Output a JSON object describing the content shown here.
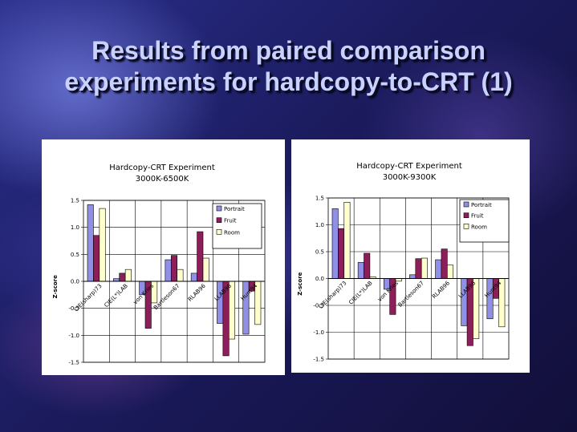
{
  "slide": {
    "title_line1": "Results from paired comparison",
    "title_line2": "experiments for hardcopy-to-CRT (1)"
  },
  "colors": {
    "portrait": "#8f8fe6",
    "fruit": "#8c1f5a",
    "room": "#ffffcc"
  },
  "chart_data": [
    {
      "type": "bar",
      "title": "Hardcopy-CRT Experiment",
      "subtitle": "3000K-6500K",
      "ylabel": "Z-score",
      "ylim": [
        -1.5,
        1.5
      ],
      "yticks": [
        1.5,
        1.0,
        0.5,
        0.0,
        -0.5,
        -1.0,
        -1.5
      ],
      "ytick_labels": [
        "1.5",
        "1.0",
        "0.5",
        "0.0",
        "-0.5",
        "-1.0",
        "-1.5"
      ],
      "grid": true,
      "legend": "top-right",
      "categories": [
        "CIE(sharp)73",
        "CIE(L*)LAB",
        "von Kries",
        "Bartleson67",
        "RLAB96",
        "LLAB96",
        "Hunt94"
      ],
      "series": [
        {
          "name": "Portrait",
          "values": [
            1.42,
            0.05,
            -0.25,
            0.4,
            0.15,
            -0.78,
            -0.98
          ]
        },
        {
          "name": "Fruit",
          "values": [
            0.85,
            0.15,
            -0.87,
            0.48,
            0.92,
            -1.38,
            -0.18
          ]
        },
        {
          "name": "Room",
          "values": [
            1.35,
            0.22,
            -0.4,
            0.22,
            0.43,
            -1.07,
            -0.8
          ]
        }
      ]
    },
    {
      "type": "bar",
      "title": "Hardcopy-CRT Experiment",
      "subtitle": "3000K-9300K",
      "ylabel": "Z-score",
      "ylim": [
        -1.5,
        1.5
      ],
      "yticks": [
        1.5,
        1.0,
        0.5,
        0.0,
        -0.5,
        -1.0,
        -1.5
      ],
      "ytick_labels": [
        "1.5",
        "1.0",
        "0.5",
        "0.0",
        "-0.5",
        "-1.0",
        "-1.5"
      ],
      "grid": true,
      "legend": "top-right",
      "categories": [
        "CIE(sharp)73",
        "CIE(L*)LAB",
        "von Kries",
        "Bartleson67",
        "RLAB96",
        "LLAB96",
        "Hunt94"
      ],
      "series": [
        {
          "name": "Portrait",
          "values": [
            1.3,
            0.3,
            -0.2,
            0.07,
            0.35,
            -0.88,
            -0.75
          ]
        },
        {
          "name": "Fruit",
          "values": [
            0.93,
            0.47,
            -0.67,
            0.37,
            0.55,
            -1.25,
            -0.37
          ]
        },
        {
          "name": "Room",
          "values": [
            1.42,
            0.03,
            -0.05,
            0.38,
            0.25,
            -1.12,
            -0.9
          ]
        }
      ]
    }
  ]
}
